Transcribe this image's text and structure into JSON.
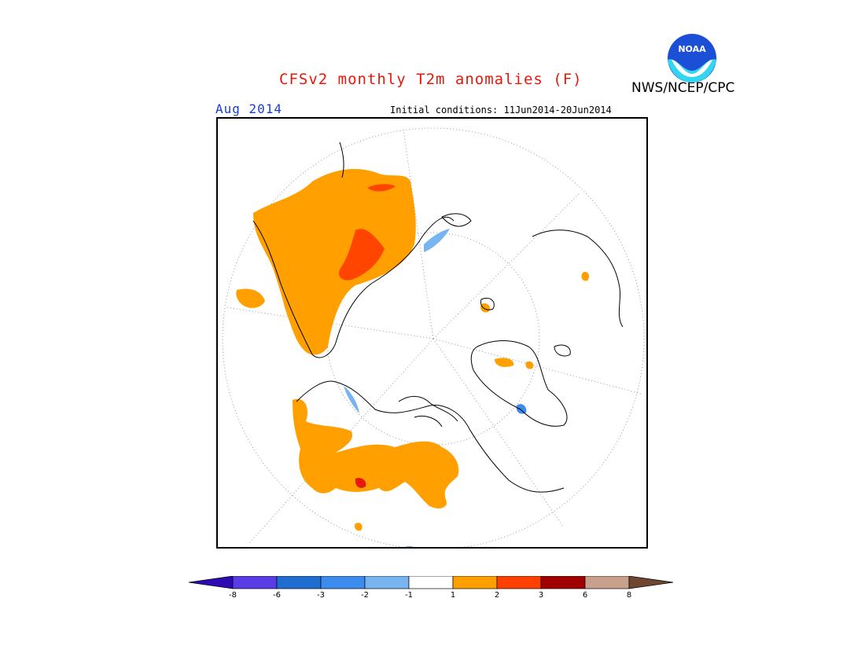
{
  "header": {
    "title": "CFSv2 monthly T2m anomalies (F)",
    "agency": "NWS/NCEP/CPC",
    "logo_text": "NOAA",
    "month": "Aug 2014",
    "initial_conditions": "Initial conditions: 11Jun2014-20Jun2014"
  },
  "colors": {
    "title": "#e8170c",
    "month": "#1a3cd8",
    "anom_warm_1": "#ffa000",
    "anom_warm_2": "#ff4500",
    "anom_warm_3": "#d2190a",
    "anom_cool_1": "#78b4f0",
    "anom_cool_2": "#3c8cf0",
    "anom_cool_3": "#1e5ad2"
  },
  "legend": {
    "labels": [
      "-8",
      "-6",
      "-3",
      "-2",
      "-1",
      "1",
      "2",
      "3",
      "6",
      "8"
    ],
    "colors": [
      "#2d0ab4",
      "#5a3ce6",
      "#1e6ed2",
      "#3c8cf0",
      "#78b4f0",
      "#ffffff",
      "#ffa000",
      "#ff4000",
      "#a00000",
      "#c8a08c",
      "#6e4632"
    ]
  }
}
